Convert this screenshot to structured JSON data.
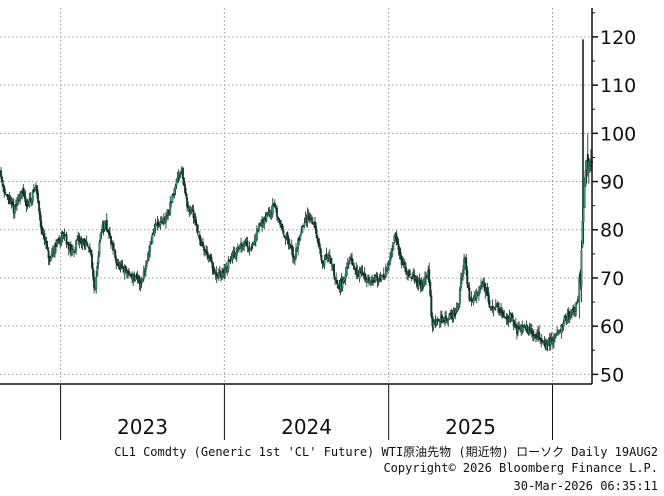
{
  "chart_data": {
    "type": "candlestick",
    "title": "",
    "xlabel": "",
    "ylabel": "",
    "ylim": [
      48,
      126
    ],
    "yticks": [
      50,
      60,
      70,
      80,
      90,
      100,
      110,
      120
    ],
    "year_labels": [
      "2023",
      "2024",
      "2025"
    ],
    "year_boundaries": [
      "2023-01-01",
      "2024-01-01",
      "2025-01-01",
      "2026-01-01"
    ],
    "x_start": "2022-08-19",
    "x_end": "2026-03-30",
    "grid": true,
    "up_color": "#2a9d73",
    "down_color": "#0d3b2e",
    "series": [
      {
        "dates": [
          "2022-08-19",
          "2022-09-01",
          "2022-09-20",
          "2022-10-05",
          "2022-10-20",
          "2022-11-07",
          "2022-11-20",
          "2022-12-09",
          "2022-12-20",
          "2023-01-10",
          "2023-01-25",
          "2023-02-10",
          "2023-02-25",
          "2023-03-10",
          "2023-03-17",
          "2023-04-01",
          "2023-04-12",
          "2023-04-28",
          "2023-05-10",
          "2023-05-31",
          "2023-06-15",
          "2023-06-30",
          "2023-07-15",
          "2023-07-31",
          "2023-08-15",
          "2023-08-31",
          "2023-09-15",
          "2023-09-27",
          "2023-10-10",
          "2023-10-25",
          "2023-11-10",
          "2023-11-25",
          "2023-12-13",
          "2023-12-31",
          "2024-01-15",
          "2024-01-31",
          "2024-02-15",
          "2024-02-29",
          "2024-03-15",
          "2024-04-05",
          "2024-04-20",
          "2024-05-05",
          "2024-05-20",
          "2024-06-04",
          "2024-06-20",
          "2024-07-05",
          "2024-07-20",
          "2024-08-05",
          "2024-08-20",
          "2024-09-10",
          "2024-09-25",
          "2024-10-07",
          "2024-10-20",
          "2024-11-05",
          "2024-11-20",
          "2024-12-05",
          "2024-12-20",
          "2025-01-05",
          "2025-01-15",
          "2025-01-31",
          "2025-02-15",
          "2025-02-28",
          "2025-03-15",
          "2025-03-31",
          "2025-04-08",
          "2025-04-20",
          "2025-05-05",
          "2025-05-20",
          "2025-06-05",
          "2025-06-13",
          "2025-06-20",
          "2025-06-30",
          "2025-07-15",
          "2025-07-31",
          "2025-08-15",
          "2025-08-31",
          "2025-09-15",
          "2025-09-30",
          "2025-10-15",
          "2025-10-31",
          "2025-11-15",
          "2025-11-30",
          "2025-12-15",
          "2025-12-31",
          "2026-01-15",
          "2026-01-31",
          "2026-02-15",
          "2026-02-28",
          "2026-03-05",
          "2026-03-09",
          "2026-03-15",
          "2026-03-20",
          "2026-03-25",
          "2026-03-30"
        ],
        "values": [
          92,
          87,
          84,
          88,
          85,
          89,
          80,
          73,
          77,
          79,
          75,
          78,
          77,
          75,
          67,
          80,
          81,
          76,
          72,
          71,
          70,
          69,
          75,
          81,
          81,
          84,
          90,
          93,
          85,
          83,
          77,
          75,
          70,
          71,
          74,
          76,
          78,
          76,
          80,
          83,
          85,
          81,
          78,
          74,
          80,
          83,
          81,
          73,
          75,
          68,
          70,
          74,
          71,
          71,
          69,
          70,
          70,
          74,
          79,
          73,
          71,
          70,
          68,
          71,
          60,
          62,
          61,
          62,
          64,
          71,
          74,
          65,
          67,
          69,
          64,
          64,
          62,
          62,
          59,
          60,
          59,
          58,
          56,
          57,
          59,
          62,
          63,
          66,
          71,
          82,
          90,
          94,
          96,
          93
        ]
      }
    ],
    "footer": [
      "CL1 Comdty (Generic 1st 'CL' Future) WTI原油先物 (期近物) ローソク Daily 19AUG2",
      "Copyright© 2026 Bloomberg Finance L.P.",
      "30-Mar-2026 06:35:11"
    ]
  }
}
